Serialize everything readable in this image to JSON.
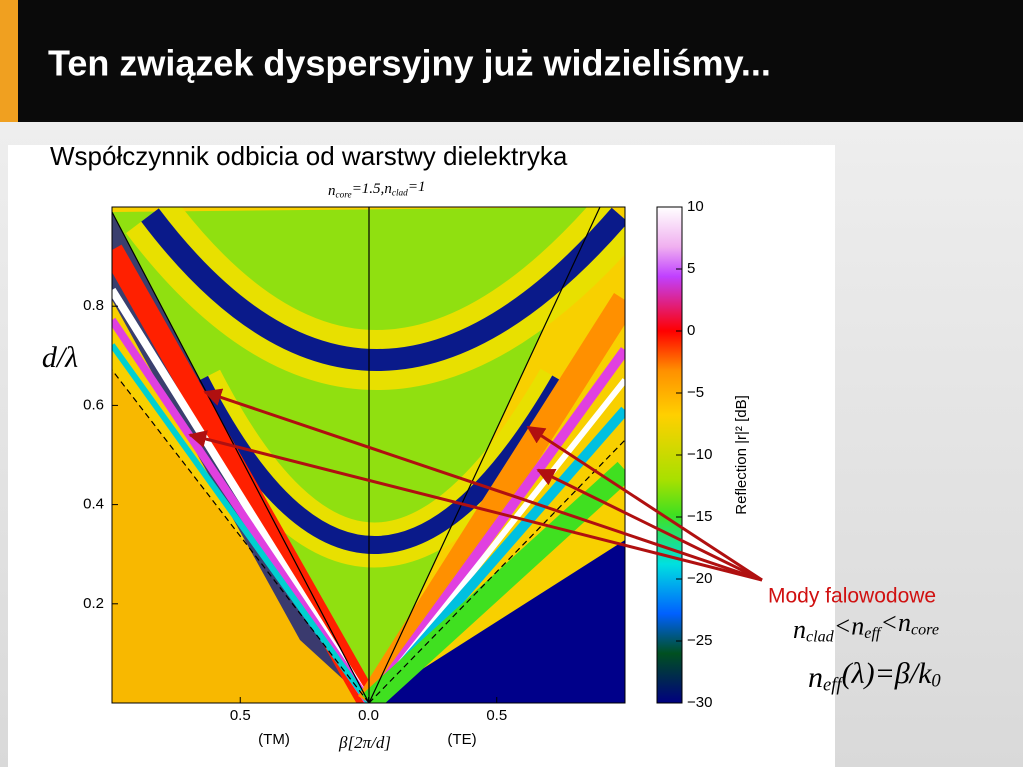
{
  "slide": {
    "title": "Ten związek dyspersyjny już widzieliśmy...",
    "subtitle": "Współczynnik odbicia od warstwy dielektryka",
    "annotation": "Mody falowodowe",
    "formula_1": [
      "n",
      "clad",
      "<",
      "n",
      "eff",
      "<",
      "n",
      "core"
    ],
    "formula_2": [
      "n",
      "eff",
      "(λ)=β/",
      "k",
      "0"
    ]
  },
  "chart_data": {
    "type": "heatmap",
    "title": [
      "n",
      "core",
      "=1.5,",
      "n",
      "clad",
      "=1"
    ],
    "xlabel": "β[2π/d]",
    "ylabel": "d/λ",
    "x_side_labels": [
      "(TM)",
      "(TE)"
    ],
    "xlim": [
      -1,
      1
    ],
    "xticks": [
      {
        "value": -0.5,
        "label": "0.5"
      },
      {
        "value": 0,
        "label": "0.0"
      },
      0.5
    ],
    "ylim": [
      0,
      1
    ],
    "yticks": [
      0.2,
      0.4,
      0.6,
      0.8
    ],
    "colorbar_label": "Reflection |r|² [dB]",
    "clim": [
      -30,
      10
    ],
    "cticks": [
      10,
      5,
      0,
      {
        "value": -5,
        "label": "−5"
      },
      {
        "value": -10,
        "label": "−10"
      },
      {
        "value": -15,
        "label": "−15"
      },
      {
        "value": -20,
        "label": "−20"
      },
      {
        "value": -25,
        "label": "−25"
      },
      {
        "value": -30,
        "label": "−30"
      }
    ]
  }
}
